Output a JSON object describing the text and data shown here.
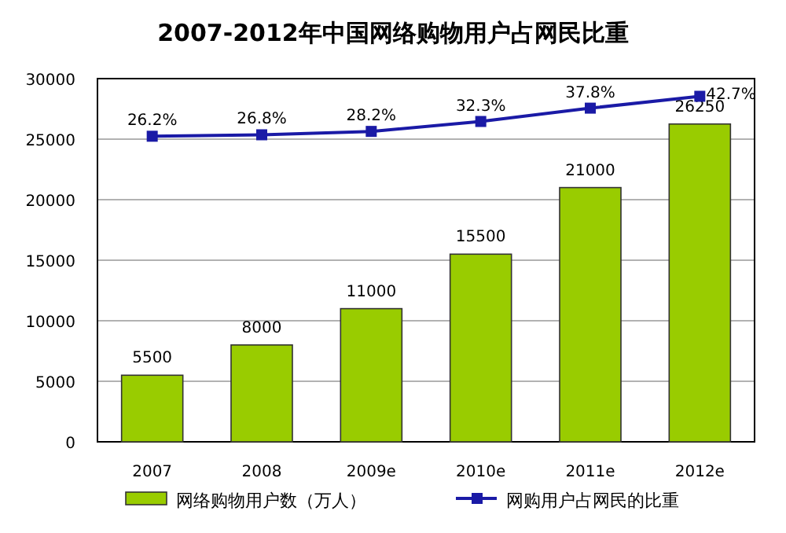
{
  "chart_data": {
    "type": "bar",
    "title": "2007-2012年中国网络购物用户占网民比重",
    "categories": [
      "2007",
      "2008",
      "2009e",
      "2010e",
      "2011e",
      "2012e"
    ],
    "series": [
      {
        "name": "网络购物用户数（万人）",
        "color": "#99cc00",
        "values": [
          5500,
          8000,
          11000,
          15500,
          21000,
          26250
        ],
        "value_labels": [
          "5500",
          "8000",
          "11000",
          "15500",
          "21000",
          "26250"
        ]
      },
      {
        "name": "网购用户占网民的比重",
        "type": "line",
        "axis": "y2",
        "color": "#1a1aa6",
        "marker": "square",
        "values": [
          26.2,
          26.8,
          28.2,
          32.3,
          37.8,
          42.7
        ],
        "value_labels": [
          "26.2%",
          "26.8%",
          "28.2%",
          "32.3%",
          "37.8%",
          "42.7%"
        ]
      }
    ],
    "ylim": [
      0,
      30000
    ],
    "yticks": [
      0,
      5000,
      10000,
      15000,
      20000,
      25000,
      30000
    ],
    "y2lim": [
      -100,
      50
    ],
    "grid": "y",
    "legend": "bottom"
  }
}
